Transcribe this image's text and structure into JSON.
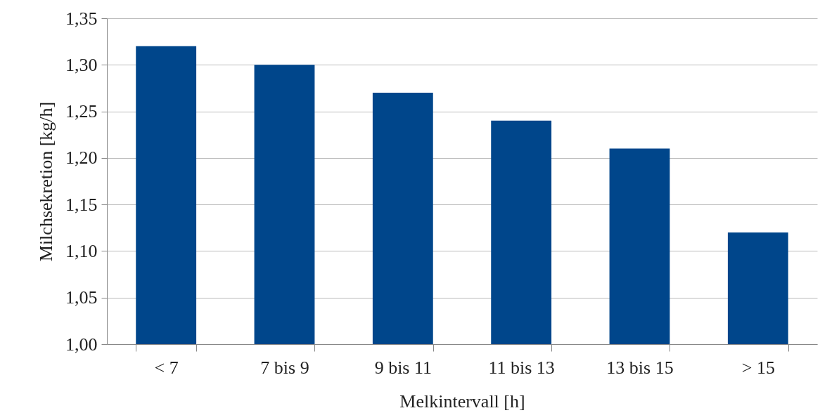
{
  "chart_data": {
    "type": "bar",
    "xlabel": "Melkintervall [h]",
    "ylabel": "Milchsekretion [kg/h]",
    "categories": [
      "< 7",
      "7 bis 9",
      "9 bis 11",
      "11 bis 13",
      "13 bis 15",
      "> 15"
    ],
    "values": [
      1.32,
      1.3,
      1.27,
      1.24,
      1.21,
      1.12
    ],
    "color": "#00468b",
    "ylim": [
      1.0,
      1.35
    ],
    "yticks": [
      {
        "value": 1.0,
        "label": "1,00"
      },
      {
        "value": 1.05,
        "label": "1,05"
      },
      {
        "value": 1.1,
        "label": "1,10"
      },
      {
        "value": 1.15,
        "label": "1,15"
      },
      {
        "value": 1.2,
        "label": "1,20"
      },
      {
        "value": 1.25,
        "label": "1,25"
      },
      {
        "value": 1.3,
        "label": "1,30"
      },
      {
        "value": 1.35,
        "label": "1,35"
      }
    ],
    "grid": "y"
  }
}
